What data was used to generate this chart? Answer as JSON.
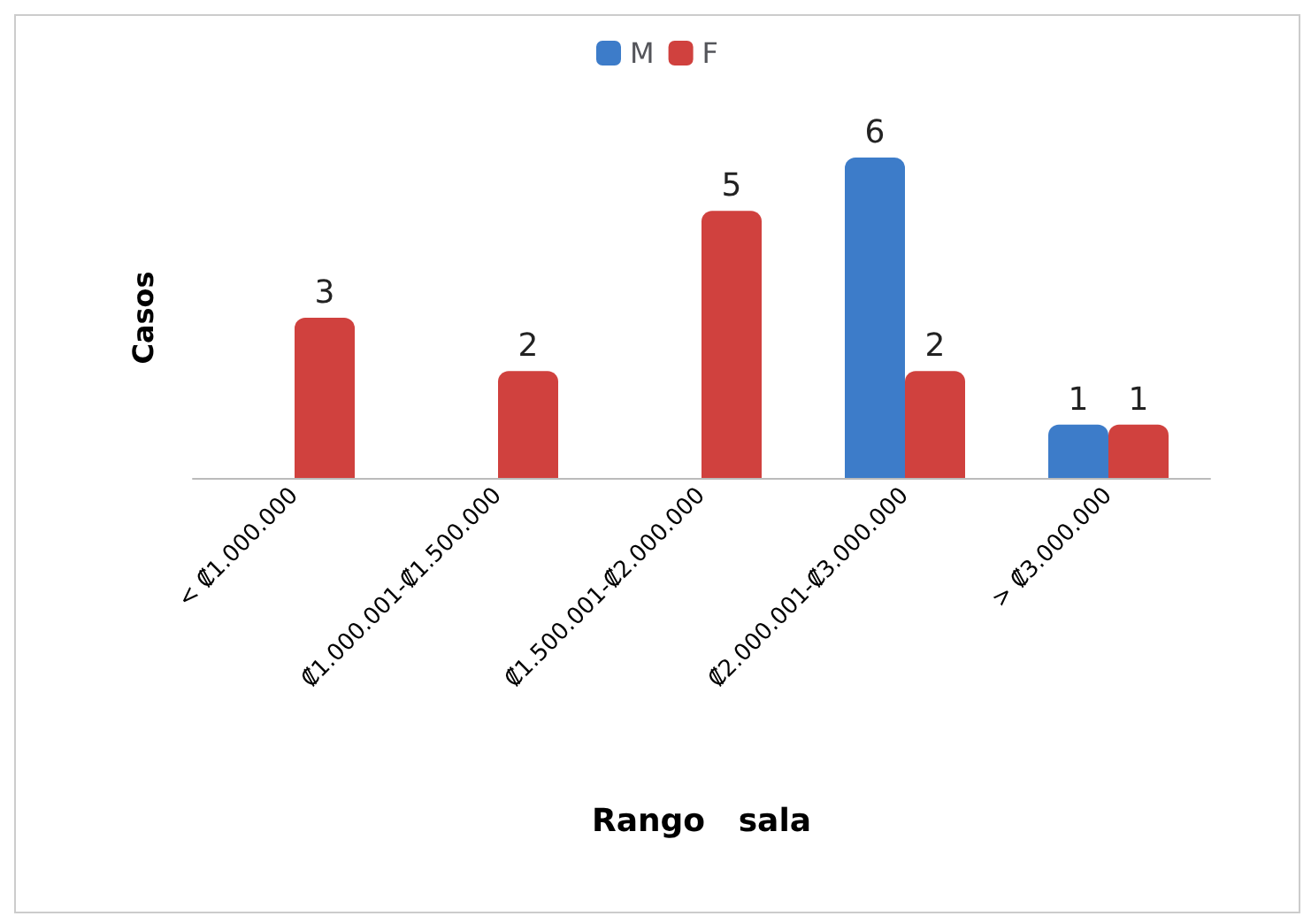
{
  "chart_data": {
    "type": "bar",
    "xlabel": "Rango   sala",
    "ylabel": "Casos",
    "categories": [
      "< ₡1.000.000",
      "₡1.000.001-₡1.500.000",
      "₡1.500.001-₡2.000.000",
      "₡2.000.001-₡3.000.000",
      "> ₡3.000.000"
    ],
    "series": [
      {
        "name": "M",
        "color": "#3d7cc9",
        "values": [
          null,
          null,
          null,
          6,
          1
        ]
      },
      {
        "name": "F",
        "color": "#d0413e",
        "values": [
          3,
          2,
          5,
          2,
          1
        ]
      }
    ],
    "data_labels": true,
    "legend": "top",
    "grid": false,
    "tick_labels": "x"
  }
}
